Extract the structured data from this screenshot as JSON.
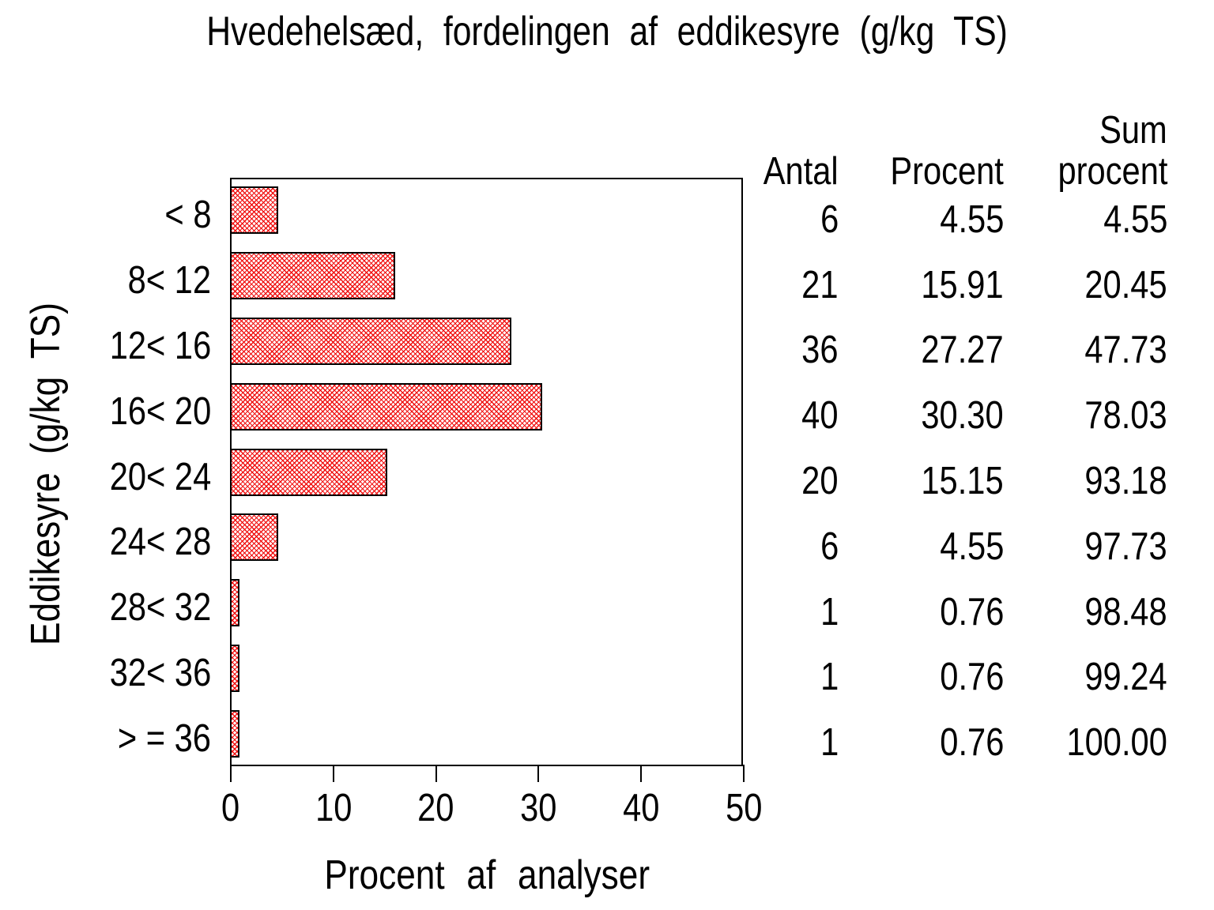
{
  "colors": {
    "bar_hatch": "#f01010",
    "axis": "#000000",
    "background": "#ffffff"
  },
  "chart_data": {
    "type": "bar",
    "orientation": "horizontal",
    "title": "Hvedehelsæd, fordelingen af eddikesyre (g/kg TS)",
    "xlabel": "Procent af analyser",
    "ylabel": "Eddikesyre (g/kg TS)",
    "xlim": [
      0,
      50
    ],
    "xticks": [
      0,
      10,
      20,
      30,
      40,
      50
    ],
    "grid": false,
    "legend": "none",
    "bar_style": "red diagonal crosshatch, black outline",
    "categories": [
      "< 8",
      "8< 12",
      "12< 16",
      "16< 20",
      "20< 24",
      "24< 28",
      "28< 32",
      "32< 36",
      "> = 36"
    ],
    "values": [
      4.55,
      15.91,
      27.27,
      30.3,
      15.15,
      4.55,
      0.76,
      0.76,
      0.76
    ],
    "table": {
      "header_line1": [
        "",
        "",
        "Sum"
      ],
      "header_line2": [
        "Antal",
        "Procent",
        "procent"
      ],
      "antal": [
        6,
        21,
        36,
        40,
        20,
        6,
        1,
        1,
        1
      ],
      "rows": [
        [
          "6",
          "4.55",
          "4.55"
        ],
        [
          "21",
          "15.91",
          "20.45"
        ],
        [
          "36",
          "27.27",
          "47.73"
        ],
        [
          "40",
          "30.30",
          "78.03"
        ],
        [
          "20",
          "15.15",
          "93.18"
        ],
        [
          "6",
          "4.55",
          "97.73"
        ],
        [
          "1",
          "0.76",
          "98.48"
        ],
        [
          "1",
          "0.76",
          "99.24"
        ],
        [
          "1",
          "0.76",
          "100.00"
        ]
      ]
    }
  }
}
